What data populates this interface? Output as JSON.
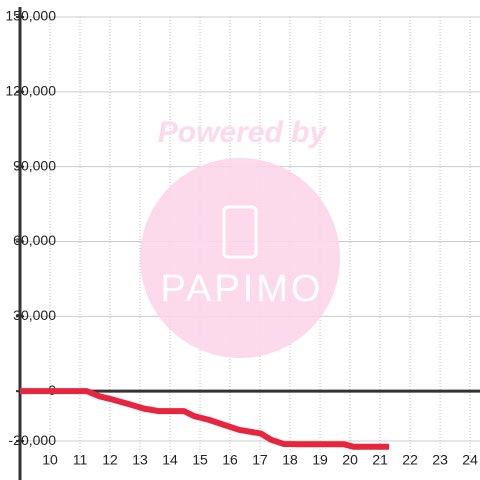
{
  "chart_data": {
    "type": "line",
    "watermark": [
      "Powered by",
      "PAPIMO"
    ],
    "x": [
      9,
      11.23,
      11.63,
      11.97,
      12.63,
      13.13,
      13.63,
      14.47,
      14.8,
      15.3,
      15.8,
      16.3,
      17.03,
      17.37,
      17.8,
      18.3,
      19.8,
      20.13,
      21.3
    ],
    "series": [
      {
        "color": "#e8253f",
        "values": [
          0,
          0,
          -2000,
          -3000,
          -5200,
          -7000,
          -8000,
          -8000,
          -10000,
          -11500,
          -13500,
          -15500,
          -17000,
          -19500,
          -21200,
          -21300,
          -21300,
          -22300,
          -22300
        ]
      }
    ],
    "xlim": [
      9,
      24.33
    ],
    "xticks": [
      10,
      11,
      12,
      13,
      14,
      15,
      16,
      17,
      18,
      19,
      20,
      21,
      22,
      23,
      24
    ],
    "ylim": [
      -30000,
      150000
    ],
    "yticks": [
      {
        "value": -20000,
        "label": "-20,000"
      },
      0,
      {
        "value": 30000,
        "label": "30,000"
      },
      {
        "value": 60000,
        "label": "60,000"
      },
      {
        "value": 90000,
        "label": "90,000"
      },
      {
        "value": 120000,
        "label": "120,000"
      },
      {
        "value": 150000,
        "label": "150,000"
      }
    ],
    "grid": true
  }
}
